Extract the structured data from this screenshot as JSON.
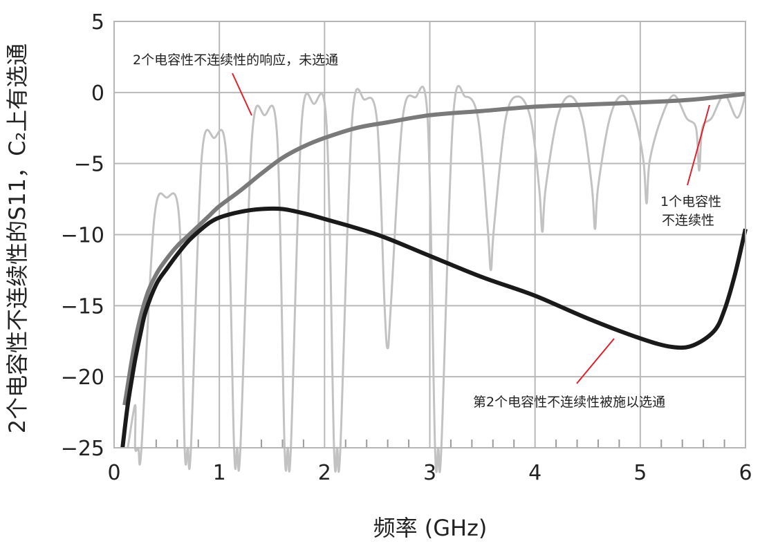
{
  "chart_data": {
    "type": "line",
    "xlabel": "频率 (GHz)",
    "ylabel": "2个电容性不连续性的S11，C₂上有选通",
    "xlim": [
      0,
      6
    ],
    "ylim": [
      -25,
      5
    ],
    "x_ticks": [
      0,
      1,
      2,
      3,
      4,
      5,
      6
    ],
    "y_ticks": [
      5,
      0,
      -5,
      -10,
      -15,
      -20,
      -25
    ],
    "x_tick_labels": [
      "0",
      "1",
      "2",
      "3",
      "4",
      "5",
      "6"
    ],
    "y_tick_labels": [
      "5",
      "0",
      "−5",
      "−10",
      "−15",
      "−20",
      "−25"
    ],
    "grid": true,
    "minor_x_step": 0.2,
    "series": [
      {
        "name": "2个电容性不连续性的响应，未选通",
        "color": "#c2c2c2",
        "nulls_x": [
          0.23,
          0.7,
          1.17,
          1.65,
          2.12,
          2.6,
          3.08,
          3.58,
          4.07,
          4.57,
          5.06,
          5.56
        ],
        "nulls_y": [
          -25,
          -25,
          -25,
          -25,
          -25,
          -18,
          -25,
          -12.5,
          -9.8,
          -9.6,
          -7.8,
          -5.5
        ],
        "peaks_x": [
          0.5,
          0.95,
          1.43,
          1.9,
          2.38,
          2.86,
          3.34,
          3.84,
          4.33,
          4.83,
          5.32,
          5.8
        ],
        "peaks_y": [
          -7.4,
          -3.2,
          -1.6,
          -0.8,
          -0.5,
          -0.35,
          -0.3,
          -0.28,
          -0.25,
          -0.22,
          -0.2,
          -0.18
        ]
      },
      {
        "name": "1个电容性不连续性",
        "color": "#7a7a7a",
        "x": [
          0.1,
          0.2,
          0.3,
          0.4,
          0.5,
          0.6,
          0.7,
          0.8,
          0.9,
          1.0,
          1.2,
          1.4,
          1.6,
          1.8,
          2.0,
          2.3,
          2.6,
          3.0,
          3.5,
          4.0,
          4.5,
          5.0,
          5.5,
          6.0
        ],
        "y": [
          -22,
          -17.5,
          -14.5,
          -12.8,
          -11.7,
          -10.8,
          -10.1,
          -9.4,
          -8.7,
          -8.0,
          -6.9,
          -5.7,
          -4.6,
          -3.8,
          -3.2,
          -2.5,
          -2.1,
          -1.6,
          -1.3,
          -1.0,
          -0.85,
          -0.7,
          -0.5,
          -0.1
        ]
      },
      {
        "name": "第2个电容性不连续性被施以选通",
        "color": "#1a1a1a",
        "x": [
          0.08,
          0.12,
          0.15,
          0.2,
          0.25,
          0.3,
          0.4,
          0.5,
          0.6,
          0.7,
          0.8,
          0.9,
          1.0,
          1.2,
          1.4,
          1.6,
          1.8,
          2.0,
          2.5,
          3.0,
          3.5,
          4.0,
          4.5,
          5.0,
          5.3,
          5.5,
          5.7,
          5.8,
          5.9,
          6.0
        ],
        "y": [
          -25,
          -22.5,
          -21,
          -18.8,
          -17,
          -15.4,
          -13.5,
          -12.4,
          -11.4,
          -10.5,
          -9.8,
          -9.2,
          -8.8,
          -8.4,
          -8.2,
          -8.2,
          -8.5,
          -8.9,
          -10.0,
          -11.5,
          -13.0,
          -14.3,
          -15.9,
          -17.3,
          -17.9,
          -17.8,
          -16.8,
          -15.3,
          -12.8,
          -9.6
        ]
      }
    ],
    "annotations": {
      "ungated": "2个电容性不连续性的响应，未选通",
      "single_line1": "1个电容性",
      "single_line2": "不连续性",
      "gated": "第2个电容性不连续性被施以选通"
    },
    "annotation_color": "#e0202a"
  }
}
